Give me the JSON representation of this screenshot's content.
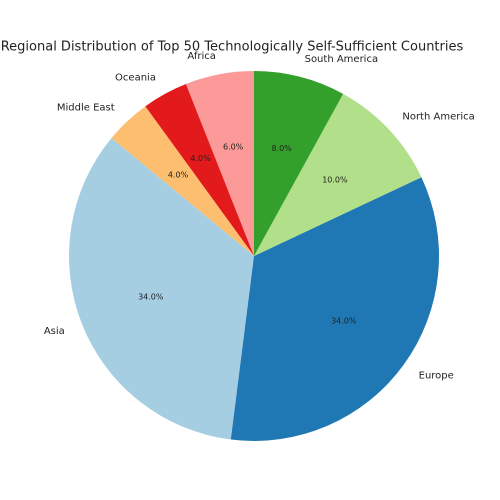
{
  "chart_data": {
    "type": "pie",
    "title": "Regional Distribution of Top 50 Technologically Self-Sufficient Countries",
    "categories": [
      "Africa",
      "Oceania",
      "Middle East",
      "Asia",
      "Europe",
      "North America",
      "South America"
    ],
    "values": [
      6,
      4,
      4,
      34,
      34,
      10,
      8
    ],
    "value_labels": [
      "6.0%",
      "4.0%",
      "4.0%",
      "34.0%",
      "34.0%",
      "10.0%",
      "8.0%"
    ],
    "colors": [
      "#fb9a99",
      "#e31a1c",
      "#fdbf6f",
      "#a6cee3",
      "#1f78b4",
      "#b2df8a",
      "#33a02c"
    ]
  }
}
